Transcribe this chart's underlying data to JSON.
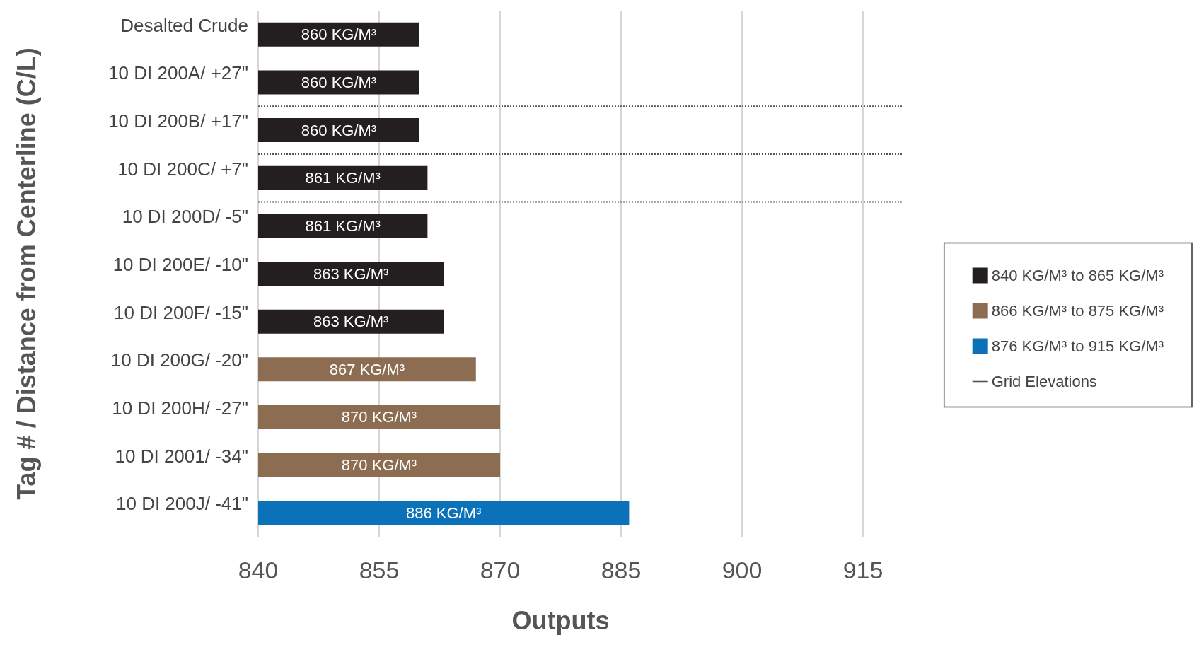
{
  "chart_data": {
    "type": "bar",
    "orientation": "horizontal",
    "xlabel": "Outputs",
    "ylabel": "Tag # / Distance from Centerline (C/L)",
    "categories": [
      "Desalted Crude",
      "10 DI 200A/ +27\"",
      "10 DI 200B/ +17\"",
      "10 DI 200C/ +7\"",
      "10 DI 200D/ -5\"",
      "10 DI 200E/ -10\"",
      "10 DI 200F/ -15\"",
      "10 DI 200G/ -20\"",
      "10 DI 200H/ -27\"",
      "10 DI 2001/ -34\"",
      "10 DI 200J/ -41\""
    ],
    "series": [
      {
        "name": "840 KG/M³ to 865 KG/M³",
        "color": "#231f20",
        "values": [
          860,
          860,
          860,
          861,
          861,
          863,
          863,
          null,
          null,
          null,
          null
        ],
        "value_labels": [
          "860 KG/M³",
          "860 KG/M³",
          "860 KG/M³",
          "861 KG/M³",
          "861 KG/M³",
          "863 KG/M³",
          "863 KG/M³",
          null,
          null,
          null,
          null
        ]
      },
      {
        "name": "866 KG/M³ to 875 KG/M³",
        "color": "#8c6d52",
        "values": [
          null,
          null,
          null,
          null,
          null,
          null,
          null,
          867,
          870,
          870,
          null
        ],
        "value_labels": [
          null,
          null,
          null,
          null,
          null,
          null,
          null,
          "867 KG/M³",
          "870 KG/M³",
          "870 KG/M³",
          null
        ]
      },
      {
        "name": "876 KG/M³ to 915 KG/M³",
        "color": "#0b72b9",
        "values": [
          null,
          null,
          null,
          null,
          null,
          null,
          null,
          null,
          null,
          null,
          886
        ],
        "value_labels": [
          null,
          null,
          null,
          null,
          null,
          null,
          null,
          null,
          null,
          null,
          "886 KG/M³"
        ]
      }
    ],
    "xlim": [
      840,
      915
    ],
    "xticks": [
      840,
      855,
      870,
      885,
      900,
      915
    ],
    "grid": "x",
    "legend": "right",
    "annotations": [
      "Grid Elevations"
    ]
  }
}
